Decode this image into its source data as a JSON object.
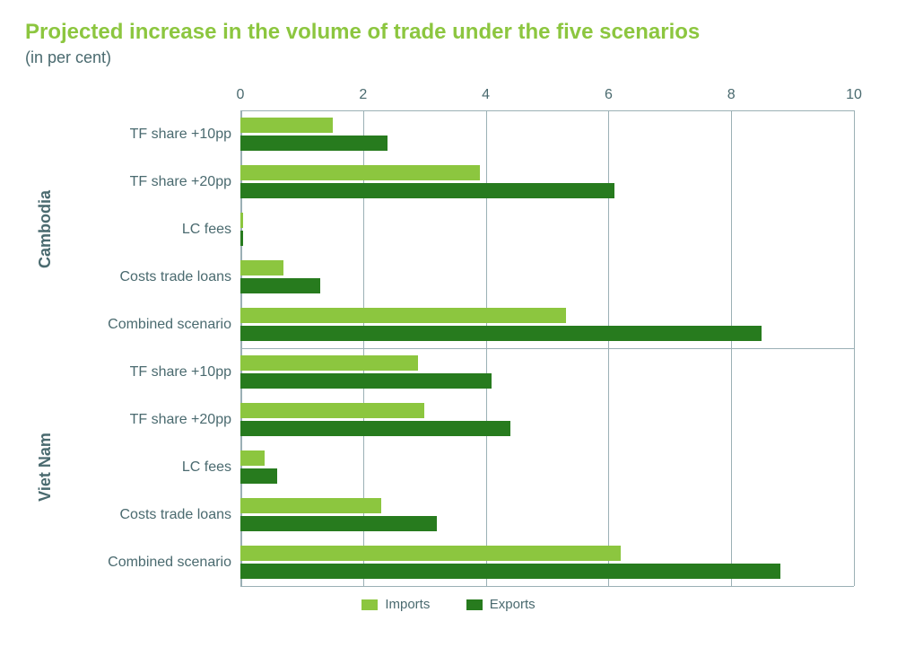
{
  "chart": {
    "type": "horizontal_grouped_bar",
    "title": "Projected increase in the volume of trade under the five scenarios",
    "subtitle": "(in per cent)",
    "title_color": "#8cc63f",
    "subtitle_color": "#4a6a6f",
    "title_fontsize": 24,
    "subtitle_fontsize": 18,
    "background_color": "#ffffff",
    "axis_color": "#9bb0b5",
    "grid_color": "#9bb0b5",
    "label_color": "#4a6a6f",
    "label_fontsize": 16,
    "group_label_fontsize": 18,
    "xlim": [
      0,
      10
    ],
    "xticks": [
      0,
      2,
      4,
      6,
      8,
      10
    ],
    "bar_pair_gap": 0.04,
    "bar_cluster_padding": 0.06,
    "series": [
      {
        "key": "imports",
        "label": "Imports",
        "color": "#8cc63f"
      },
      {
        "key": "exports",
        "label": "Exports",
        "color": "#277b1e"
      }
    ],
    "groups": [
      {
        "name": "Cambodia",
        "rows": [
          {
            "label": "TF share +10pp",
            "imports": 1.5,
            "exports": 2.4
          },
          {
            "label": "TF share +20pp",
            "imports": 3.9,
            "exports": 6.1
          },
          {
            "label": "LC fees",
            "imports": 0.05,
            "exports": 0.05
          },
          {
            "label": "Costs trade loans",
            "imports": 0.7,
            "exports": 1.3
          },
          {
            "label": "Combined scenario",
            "imports": 5.3,
            "exports": 8.5
          }
        ]
      },
      {
        "name": "Viet Nam",
        "rows": [
          {
            "label": "TF share +10pp",
            "imports": 2.9,
            "exports": 4.1
          },
          {
            "label": "TF share +20pp",
            "imports": 3.0,
            "exports": 4.4
          },
          {
            "label": "LC fees",
            "imports": 0.4,
            "exports": 0.6
          },
          {
            "label": "Costs trade loans",
            "imports": 2.3,
            "exports": 3.2
          },
          {
            "label": "Combined scenario",
            "imports": 6.2,
            "exports": 8.8
          }
        ]
      }
    ]
  }
}
